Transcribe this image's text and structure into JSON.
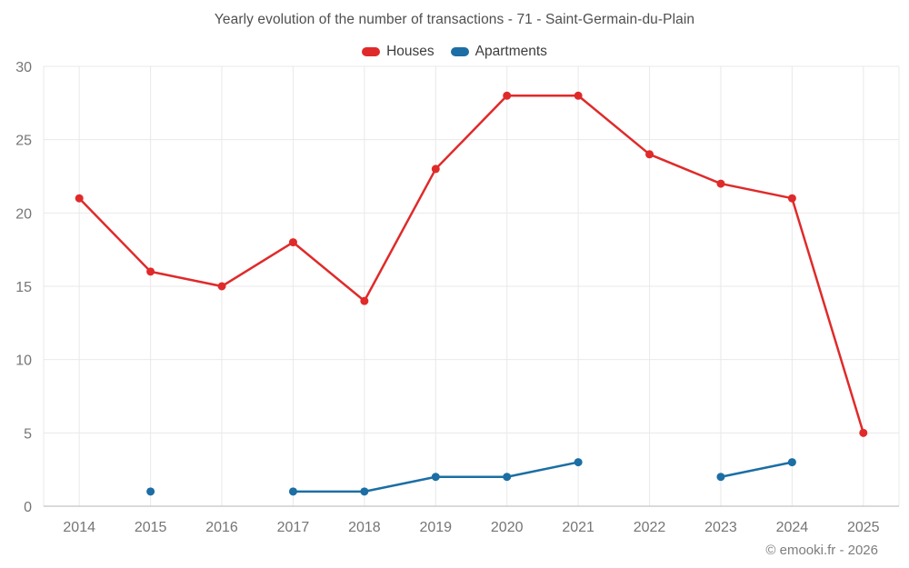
{
  "chart": {
    "title": "Yearly evolution of the number of transactions - 71 - Saint-Germain-du-Plain"
  },
  "footer": {
    "copyright": "© emooki.fr - 2026"
  },
  "chart_data": {
    "type": "line",
    "x": [
      2014,
      2015,
      2016,
      2017,
      2018,
      2019,
      2020,
      2021,
      2022,
      2023,
      2024,
      2025
    ],
    "series": [
      {
        "name": "Houses",
        "color": "#e02a2a",
        "values": [
          21,
          16,
          15,
          18,
          14,
          23,
          28,
          28,
          24,
          22,
          21,
          5
        ]
      },
      {
        "name": "Apartments",
        "color": "#1c6ea4",
        "values": [
          null,
          1,
          null,
          1,
          1,
          2,
          2,
          3,
          null,
          2,
          3,
          null
        ]
      }
    ],
    "title": "Yearly evolution of the number of transactions - 71 - Saint-Germain-du-Plain",
    "xlabel": "",
    "ylabel": "",
    "ylim": [
      0,
      30
    ],
    "yticks": [
      0,
      5,
      10,
      15,
      20,
      25,
      30
    ],
    "grid": true,
    "legend_position": "top",
    "grid_color": "#e9e9e9",
    "axis_color": "#b5b5b5",
    "tick_label_color": "#757575",
    "marker_radius": 4.5,
    "line_width": 2.5
  }
}
